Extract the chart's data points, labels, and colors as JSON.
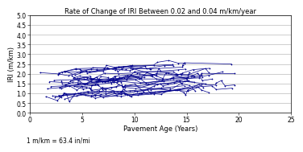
{
  "title": "Rate of Change of IRI Between 0.02 and 0.04 m/km/year",
  "xlabel": "Pavement Age (Years)",
  "ylabel": "IRI (m/km)",
  "footnote": "1 m/km = 63.4 in/mi",
  "xlim": [
    0,
    25
  ],
  "ylim": [
    0.0,
    5.0
  ],
  "yticks": [
    0.0,
    0.5,
    1.0,
    1.5,
    2.0,
    2.5,
    3.0,
    3.5,
    4.0,
    4.5,
    5.0
  ],
  "xticks": [
    0,
    5,
    10,
    15,
    20,
    25
  ],
  "line_color": "#00008B",
  "marker": "+",
  "background_color": "#ffffff",
  "title_fontsize": 6.0,
  "axis_label_fontsize": 6.0,
  "tick_fontsize": 5.5,
  "footnote_fontsize": 5.5,
  "num_sections": 28
}
